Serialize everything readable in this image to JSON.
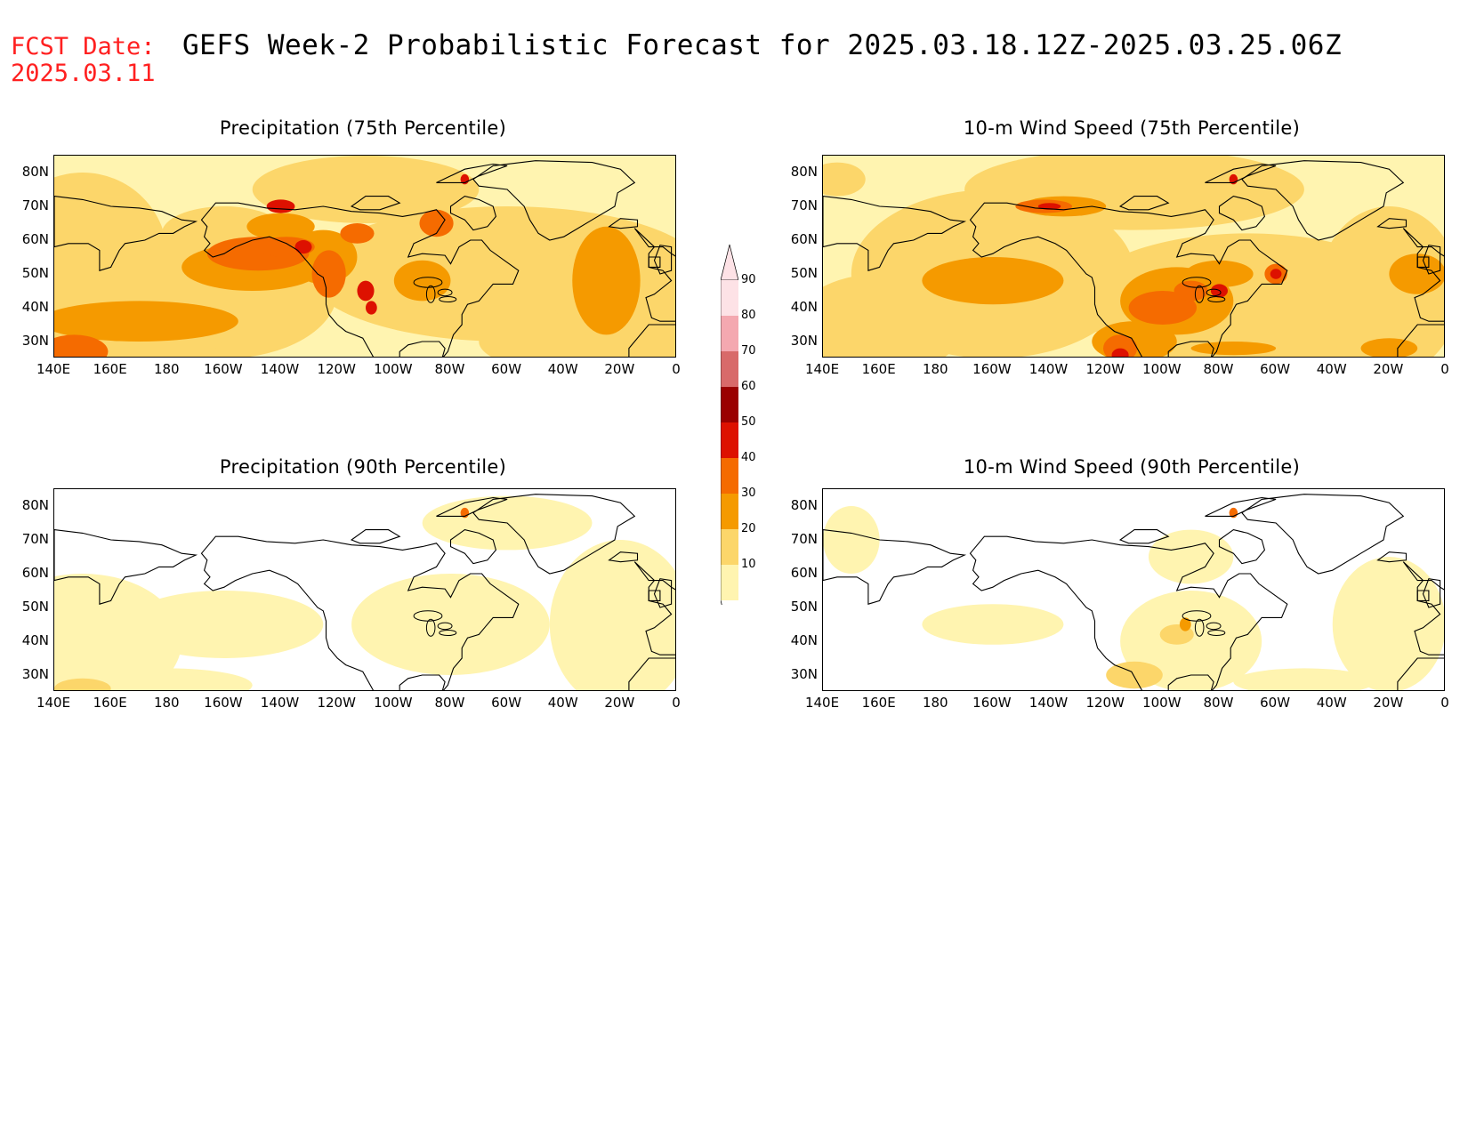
{
  "header": {
    "fcst_label": "FCST Date:",
    "fcst_date": "2025.03.11",
    "title": "GEFS Week-2 Probabilistic Forecast for 2025.03.18.12Z-2025.03.25.06Z"
  },
  "panels": [
    {
      "title": "Precipitation (75th Percentile)",
      "variable": "precipitation",
      "percentile": 75,
      "intensity": "high"
    },
    {
      "title": "10-m Wind Speed (75th Percentile)",
      "variable": "wind",
      "percentile": 75,
      "intensity": "high"
    },
    {
      "title": "Precipitation (90th Percentile)",
      "variable": "precipitation",
      "percentile": 90,
      "intensity": "low"
    },
    {
      "title": "10-m Wind Speed (90th Percentile)",
      "variable": "wind",
      "percentile": 90,
      "intensity": "low"
    }
  ],
  "axes": {
    "lat_labels": [
      "80N",
      "70N",
      "60N",
      "50N",
      "40N",
      "30N"
    ],
    "lon_labels": [
      "140E",
      "160E",
      "180",
      "160W",
      "140W",
      "120W",
      "100W",
      "80W",
      "60W",
      "40W",
      "20W",
      "0"
    ],
    "lat_range": [
      25,
      85
    ],
    "lon_range_deg_east": [
      140,
      360
    ]
  },
  "colorbar": {
    "levels": [
      "90",
      "80",
      "70",
      "60",
      "50",
      "40",
      "30",
      "20",
      "10"
    ],
    "colors": [
      "#fde2e6",
      "#f4a8b0",
      "#d86a6a",
      "#9a0000",
      "#dd1100",
      "#f56b00",
      "#f59a00",
      "#fcd66a",
      "#fff4b0"
    ]
  }
}
